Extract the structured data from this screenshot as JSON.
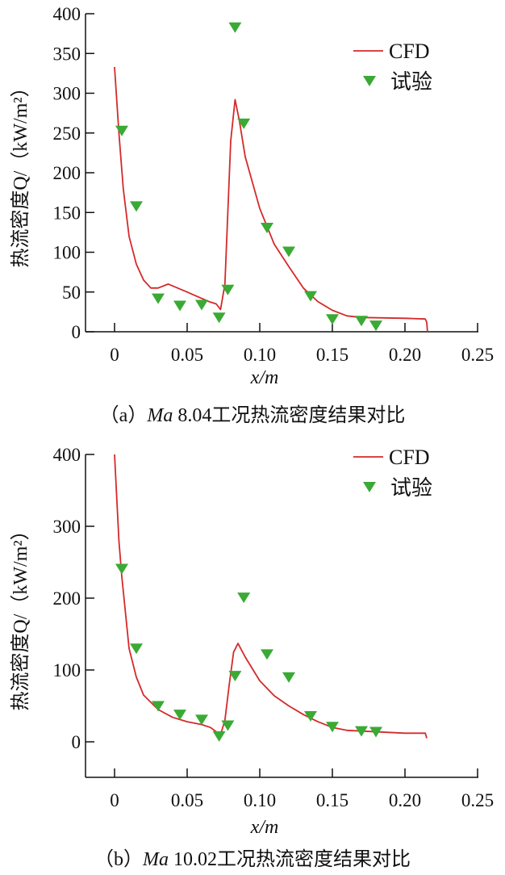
{
  "chart_data": [
    {
      "type": "line",
      "caption": "（a）Ma 8.04工况热流密度结果对比",
      "caption_prefix": "（a）",
      "caption_ma": "Ma",
      "caption_rest": " 8.04工况热流密度结果对比",
      "xlabel": "x/m",
      "ylabel": "热流密度Q/（kW/m²）",
      "xlim": [
        -0.0195,
        0.25
      ],
      "ylim": [
        0,
        400
      ],
      "xticks": [
        0,
        0.05,
        0.1,
        0.15,
        0.2,
        0.25
      ],
      "xtick_labels": [
        "0",
        "0.05",
        "0.10",
        "0.15",
        "0.20",
        "0.25"
      ],
      "yticks": [
        0,
        50,
        100,
        150,
        200,
        250,
        300,
        350,
        400
      ],
      "ytick_labels": [
        "0",
        "50",
        "100",
        "150",
        "200",
        "250",
        "300",
        "350",
        "400"
      ],
      "legend": {
        "position": "top-right",
        "entries": [
          "CFD",
          "试验"
        ]
      },
      "grid": false,
      "series": [
        {
          "name": "CFD",
          "kind": "line",
          "color": "#d42a2a",
          "x": [
            0,
            0.003,
            0.006,
            0.01,
            0.015,
            0.02,
            0.025,
            0.03,
            0.037,
            0.05,
            0.065,
            0.07,
            0.073,
            0.076,
            0.08,
            0.083,
            0.086,
            0.09,
            0.1,
            0.11,
            0.12,
            0.13,
            0.14,
            0.15,
            0.16,
            0.17,
            0.2,
            0.214,
            0.215,
            0.2155
          ],
          "y": [
            333,
            250,
            180,
            120,
            85,
            65,
            55,
            55,
            60,
            50,
            38,
            35,
            28,
            60,
            240,
            292,
            265,
            220,
            155,
            110,
            82,
            55,
            38,
            27,
            20,
            18,
            17,
            16,
            12,
            0
          ]
        },
        {
          "name": "试验",
          "kind": "scatter",
          "marker": "triangle-down",
          "color": "#3aaa35",
          "x": [
            0.005,
            0.015,
            0.03,
            0.045,
            0.06,
            0.072,
            0.078,
            0.083,
            0.089,
            0.105,
            0.12,
            0.135,
            0.15,
            0.17,
            0.18
          ],
          "y": [
            253,
            158,
            42,
            33,
            34,
            18,
            53,
            383,
            262,
            131,
            101,
            45,
            16,
            14,
            8
          ]
        }
      ]
    },
    {
      "type": "line",
      "caption": "（b）Ma 10.02工况热流密度结果对比",
      "caption_prefix": "（b）",
      "caption_ma": "Ma",
      "caption_rest": " 10.02工况热流密度结果对比",
      "xlabel": "x/m",
      "ylabel": "热流密度Q/（kW/m²）",
      "xlim": [
        -0.0195,
        0.25
      ],
      "ylim": [
        -50,
        400
      ],
      "xticks": [
        0,
        0.05,
        0.1,
        0.15,
        0.2,
        0.25
      ],
      "xtick_labels": [
        "0",
        "0.05",
        "0.10",
        "0.15",
        "0.20",
        "0.25"
      ],
      "yticks": [
        0,
        100,
        200,
        300,
        400
      ],
      "ytick_labels": [
        "0",
        "100",
        "200",
        "300",
        "400"
      ],
      "legend": {
        "position": "top-right",
        "entries": [
          "CFD",
          "试验"
        ]
      },
      "grid": false,
      "series": [
        {
          "name": "CFD",
          "kind": "line",
          "color": "#d42a2a",
          "x": [
            0,
            0.003,
            0.005,
            0.01,
            0.015,
            0.02,
            0.03,
            0.04,
            0.05,
            0.06,
            0.066,
            0.07,
            0.073,
            0.076,
            0.079,
            0.082,
            0.085,
            0.09,
            0.1,
            0.11,
            0.12,
            0.13,
            0.14,
            0.15,
            0.16,
            0.2,
            0.214,
            0.215
          ],
          "y": [
            400,
            280,
            230,
            130,
            90,
            65,
            45,
            34,
            28,
            24,
            20,
            14,
            10,
            30,
            80,
            125,
            137,
            118,
            85,
            64,
            50,
            38,
            28,
            20,
            16,
            12,
            12,
            5
          ]
        },
        {
          "name": "试验",
          "kind": "scatter",
          "marker": "triangle-down",
          "color": "#3aaa35",
          "x": [
            0.005,
            0.015,
            0.03,
            0.045,
            0.06,
            0.072,
            0.078,
            0.083,
            0.089,
            0.105,
            0.12,
            0.135,
            0.15,
            0.17,
            0.18
          ],
          "y": [
            241,
            130,
            50,
            38,
            31,
            8,
            23,
            92,
            201,
            122,
            90,
            36,
            21,
            15,
            14
          ]
        }
      ]
    }
  ]
}
